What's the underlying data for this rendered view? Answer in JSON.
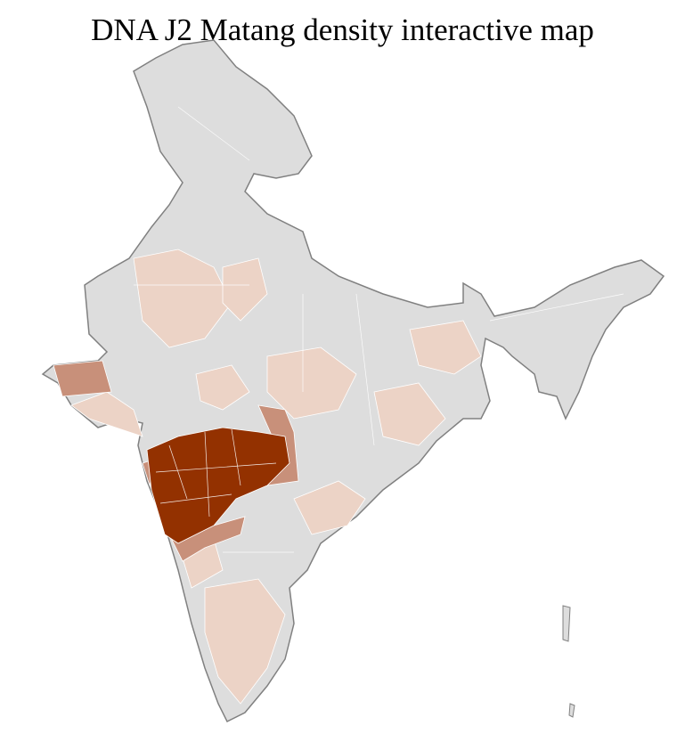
{
  "title": "DNA J2 Matang density interactive map",
  "colors": {
    "no_data": "#dddddd",
    "low": "#ecd3c6",
    "medium": "#c8907a",
    "high": "#933100",
    "border": "#808080",
    "district_line": "#ffffff"
  },
  "regions": [
    {
      "name": "maharashtra",
      "level": "high"
    },
    {
      "name": "gujarat-kutch",
      "level": "medium"
    },
    {
      "name": "vidarbha-east",
      "level": "medium"
    },
    {
      "name": "north-karnataka",
      "level": "medium"
    }
  ]
}
